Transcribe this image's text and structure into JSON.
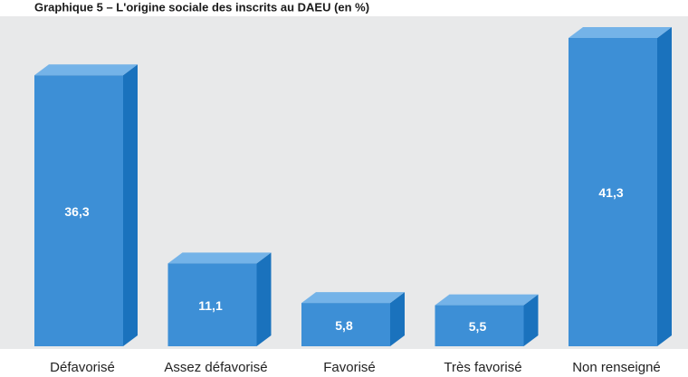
{
  "chart_data": {
    "type": "bar3d",
    "title": "Graphique 5 – L'origine sociale des inscrits au DAEU (en %)",
    "categories": [
      "Défavorisé",
      "Assez défavorisé",
      "Favorisé",
      "Très favorisé",
      "Non renseigné"
    ],
    "values": [
      36.3,
      11.1,
      5.8,
      5.5,
      41.3
    ],
    "value_labels": [
      "36,3",
      "11,1",
      "5,8",
      "5,5",
      "41,3"
    ],
    "color": "#3d8fd6"
  }
}
